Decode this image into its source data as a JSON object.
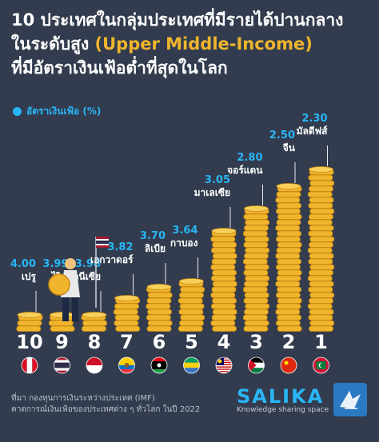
{
  "title": {
    "line1": "10 ประเทศในกลุ่มประเทศที่มีรายได้ปานกลาง",
    "line2_prefix": "ในระดับสูง ",
    "line2_highlight": "(Upper Middle-Income)",
    "line3": "ที่มีอัตราเงินเฟ้อต่ำที่สุดในโลก"
  },
  "legend": {
    "label": "อัตราเงินเฟ้อ (%)"
  },
  "chart_data": {
    "type": "bar",
    "ylabel": "อัตราเงินเฟ้อ (%)",
    "categories": [
      "เปรู",
      "ไทย",
      "อินโดนีเซีย",
      "เอกวาดอร์",
      "ลิเบีย",
      "กาบอง",
      "มาเลเซีย",
      "จอร์แดน",
      "จีน",
      "มัลดีฟส์"
    ],
    "ranks": [
      "10",
      "9",
      "8",
      "7",
      "6",
      "5",
      "4",
      "3",
      "2",
      "1"
    ],
    "values": [
      4.0,
      3.99,
      3.98,
      3.82,
      3.7,
      3.64,
      3.05,
      2.8,
      2.5,
      2.3
    ],
    "value_labels": [
      "4.00",
      "3.99",
      "3.98",
      "3.82",
      "3.70",
      "3.64",
      "3.05",
      "2.80",
      "2.50",
      "2.30"
    ],
    "flags": [
      "peru-flag",
      "thailand-flag",
      "indonesia-flag",
      "ecuador-flag",
      "libya-flag",
      "gabon-flag",
      "malaysia-flag",
      "jordan-flag",
      "china-flag",
      "maldives-flag"
    ],
    "colors": {
      "coin": "#f0b52c",
      "coin_dark": "#c98a12",
      "value_label": "#29b6f6",
      "rank": "#ffffff"
    }
  },
  "source": {
    "line1": "ที่มา กองทุนการเงินระหว่างประเทศ (IMF)",
    "line2": "คาดการณ์เงินเฟ้อของประเทศต่าง ๆ ทั่วโลก ในปี 2022"
  },
  "logo": {
    "name": "SALIKA",
    "tagline": "Knowledge sharing space",
    "mark_icon": "salika-bird-logo-icon"
  }
}
